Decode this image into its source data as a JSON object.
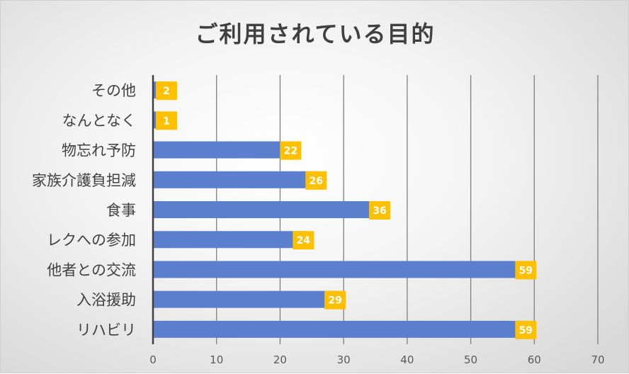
{
  "chart_data": {
    "type": "bar",
    "orientation": "horizontal",
    "title": "ご利用されている目的",
    "categories": [
      "その他",
      "なんとなく",
      "物忘れ予防",
      "家族介護負担減",
      "食事",
      "レクへの参加",
      "他者との交流",
      "入浴援助",
      "リハビリ"
    ],
    "values": [
      2,
      1,
      22,
      26,
      36,
      24,
      59,
      29,
      59
    ],
    "xlim": [
      0,
      70
    ],
    "xticks": [
      0,
      10,
      20,
      30,
      40,
      50,
      60,
      70
    ],
    "grid": true,
    "legend": "none",
    "colors": {
      "bar": "#5B7FCC",
      "label_bg": "#FFC000",
      "grid": "#7f7f7f",
      "axis": "#404040"
    }
  }
}
